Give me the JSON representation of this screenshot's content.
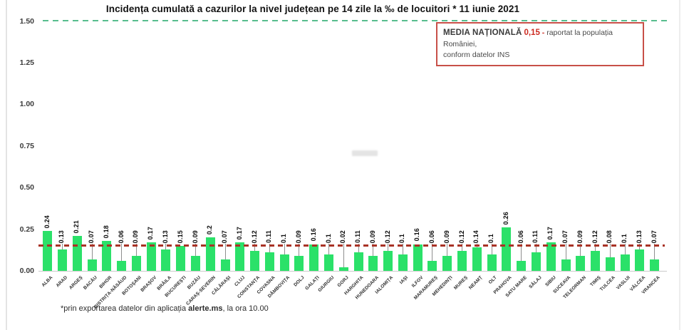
{
  "page": {
    "title": "Incidența cumulată a cazurilor la nivel județean pe 14 zile la ‰ de locuitori *  11 iunie 2021"
  },
  "annotation_box": {
    "label": "MEDIA NAȚIONALĂ",
    "value": "0,15",
    "dash": "-",
    "text": "raportat la populația României,",
    "text_line2": "conform datelor INS"
  },
  "footnote": {
    "prefix": "*prin exportarea datelor din aplicația ",
    "app_name": "alerte.ms",
    "suffix": ", la ora 10.00"
  },
  "colors": {
    "bar": "#2be169",
    "avg_line": "#a93226",
    "upper_line": "#58bd8e",
    "box_border": "#c85048",
    "value_red": "#cc2a20"
  },
  "chart_data": {
    "type": "bar",
    "title": "Incidența cumulată a cazurilor la nivel județean pe 14 zile la ‰ de locuitori *  11 iunie 2021",
    "xlabel": "",
    "ylabel": "",
    "ylim": [
      0,
      1.5
    ],
    "ytick_labels": [
      "0.00",
      "0.25",
      "0.50",
      "0.75",
      "1.00",
      "1.25",
      "1.50"
    ],
    "grid": false,
    "legend": null,
    "value_labels_shown": true,
    "reference_lines": [
      {
        "name": "media-nationala",
        "value": 0.15,
        "style": "dashed",
        "color": "#a93226"
      },
      {
        "name": "upper-bound",
        "value": 1.5,
        "style": "dashed",
        "color": "#58bd8e"
      }
    ],
    "categories": [
      "ALBA",
      "ARAD",
      "ARGEȘ",
      "BACĂU",
      "BIHOR",
      "BISTRIȚA-NĂSĂUD",
      "BOTOȘANI",
      "BRAȘOV",
      "BRĂILA",
      "BUCUREȘTI",
      "BUZĂU",
      "CARAȘ-SEVERIN",
      "CĂLĂRAȘI",
      "CLUJ",
      "CONSTANȚA",
      "COVASNA",
      "DÂMBOVIȚA",
      "DOLJ",
      "GALAȚI",
      "GIURGIU",
      "GORJ",
      "HARGHITA",
      "HUNEDOARA",
      "IALOMIȚA",
      "IAȘI",
      "ILFOV",
      "MARAMUREȘ",
      "MEHEDINȚI",
      "MUREȘ",
      "NEAMȚ",
      "OLT",
      "PRAHOVA",
      "SATU MARE",
      "SĂLAJ",
      "SIBIU",
      "SUCEAVA",
      "TELEORMAN",
      "TIMIȘ",
      "TULCEA",
      "VASLUI",
      "VÂLCEA",
      "VRANCEA"
    ],
    "values": [
      0.24,
      0.13,
      0.21,
      0.07,
      0.18,
      0.06,
      0.09,
      0.17,
      0.13,
      0.15,
      0.09,
      0.2,
      0.07,
      0.17,
      0.12,
      0.11,
      0.1,
      0.09,
      0.16,
      0.1,
      0.02,
      0.11,
      0.09,
      0.12,
      0.1,
      0.16,
      0.06,
      0.09,
      0.12,
      0.14,
      0.1,
      0.26,
      0.06,
      0.11,
      0.17,
      0.07,
      0.09,
      0.12,
      0.08,
      0.1,
      0.13,
      0.07
    ]
  }
}
